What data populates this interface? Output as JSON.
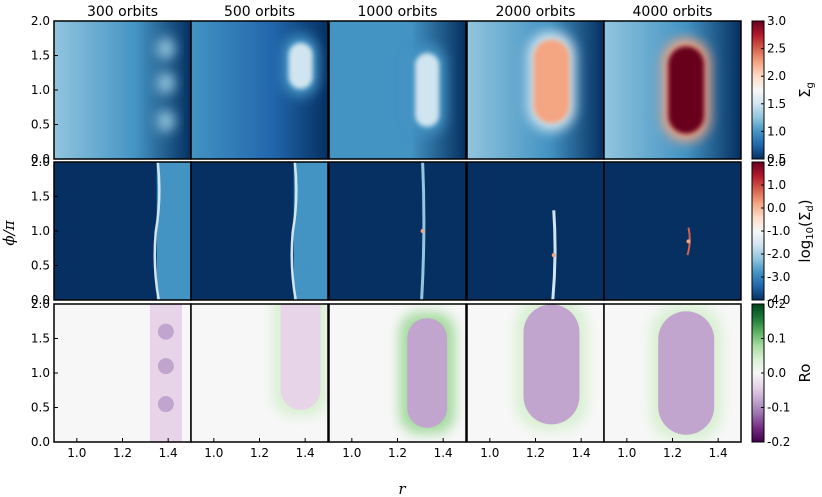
{
  "chart_data": {
    "type": "heatmap",
    "panel_titles": [
      "300 orbits",
      "500 orbits",
      "1000 orbits",
      "2000 orbits",
      "4000 orbits"
    ],
    "xlabel": "r",
    "ylabel": "ϕ/π",
    "x_ticks": [
      "1.0",
      "1.2",
      "1.4"
    ],
    "x_tick_values": [
      1.0,
      1.2,
      1.4
    ],
    "xlim": [
      0.9,
      1.5
    ],
    "ylim": [
      0.0,
      2.0
    ],
    "y_ticks": [
      "0.0",
      "0.5",
      "1.0",
      "1.5",
      "2.0"
    ],
    "y_tick_values": [
      0.0,
      0.5,
      1.0,
      1.5,
      2.0
    ],
    "rows": [
      {
        "quantity": "Σg",
        "colorbar_label_main": "Σ",
        "colorbar_label_sub": "g",
        "colormap": "RdBu_r",
        "clim": [
          0.5,
          3.0
        ],
        "colorbar_ticks": [
          "3.0",
          "2.5",
          "2.0",
          "1.5",
          "1.0",
          "0.5"
        ],
        "colorbar_tick_values": [
          3.0,
          2.5,
          2.0,
          1.5,
          1.0,
          0.5
        ],
        "colors": [
          "#053061",
          "#2166ac",
          "#4393c3",
          "#92c5de",
          "#d1e5f0",
          "#f7f7f7",
          "#fddbc7",
          "#f4a582",
          "#d6604d",
          "#b2182b",
          "#67001f"
        ]
      },
      {
        "quantity": "log10(Σd)",
        "colorbar_label_main": "log",
        "colorbar_label_sub": "10",
        "colorbar_label_tail": "(Σ",
        "colorbar_label_tail_sub": "d",
        "colorbar_label_end": ")",
        "colormap": "RdBu_r",
        "clim": [
          -4.0,
          2.0
        ],
        "colorbar_ticks": [
          "2.0",
          "1.0",
          "0.0",
          "-1.0",
          "-2.0",
          "-3.0",
          "-4.0"
        ],
        "colorbar_tick_values": [
          2.0,
          1.0,
          0.0,
          -1.0,
          -2.0,
          -3.0,
          -4.0
        ],
        "colors": [
          "#053061",
          "#2166ac",
          "#4393c3",
          "#92c5de",
          "#d1e5f0",
          "#f7f7f7",
          "#fddbc7",
          "#f4a582",
          "#d6604d",
          "#b2182b",
          "#67001f"
        ]
      },
      {
        "quantity": "Ro",
        "colorbar_label_main": "Ro",
        "colormap": "PRGn",
        "clim": [
          -0.2,
          0.2
        ],
        "colorbar_ticks": [
          "0.2",
          "0.1",
          "0.0",
          "-0.1",
          "-0.2"
        ],
        "colorbar_tick_values": [
          0.2,
          0.1,
          0.0,
          -0.1,
          -0.2
        ],
        "colors": [
          "#40004b",
          "#762a83",
          "#9970ab",
          "#c2a5cf",
          "#e7d4e8",
          "#f7f7f7",
          "#d9f0d3",
          "#a6dba0",
          "#5aae61",
          "#1b7837",
          "#00441b"
        ]
      }
    ],
    "panels": [
      [
        {
          "vortex": "three small lobes",
          "vortex_r_center": 1.39,
          "vortex_phi_center": [
            0.55,
            1.1,
            1.6
          ],
          "level": 1.2,
          "background_level": 1.0
        },
        {
          "vortex": "elongated",
          "vortex_r_center": 1.38,
          "vortex_phi_range": [
            0.9,
            1.8
          ],
          "level": 1.5,
          "background_level": 0.85
        },
        {
          "vortex": "single oval",
          "vortex_r_center": 1.33,
          "vortex_phi_range": [
            0.35,
            1.65
          ],
          "level": 1.6,
          "background_level": 0.9
        },
        {
          "vortex": "single oval",
          "vortex_r_center": 1.27,
          "vortex_phi_range": [
            0.4,
            1.85
          ],
          "level": 2.2,
          "background_level": 1.0
        },
        {
          "vortex": "single oval",
          "vortex_r_center": 1.26,
          "vortex_phi_range": [
            0.25,
            1.75
          ],
          "level": 2.9,
          "background_level": 1.0
        }
      ],
      [
        {
          "dust_ring_r_inner": 1.35,
          "dust_ring_r_outer": 1.5,
          "dust_level": -2.6,
          "background_level": -4.0
        },
        {
          "dust_ring_r_inner": 1.35,
          "dust_ring_r_outer": 1.5,
          "dust_level": -2.7,
          "background_level": -4.0
        },
        {
          "dust_filament_r": 1.31,
          "dust_level": -2.0,
          "background_level": -4.0
        },
        {
          "dust_filament_r": 1.28,
          "dust_phi_range": [
            0.0,
            1.3
          ],
          "dust_level": -1.5,
          "background_level": -4.0
        },
        {
          "dust_filament_r": 1.27,
          "dust_phi_range": [
            0.65,
            1.05
          ],
          "dust_level": 0.5,
          "background_level": -4.0
        }
      ],
      [
        {
          "vortex_Ro": -0.07,
          "halo_Ro": 0.02
        },
        {
          "vortex_Ro": -0.06,
          "halo_Ro": 0.05
        },
        {
          "vortex_Ro": -0.08,
          "halo_Ro": 0.06
        },
        {
          "vortex_Ro": -0.09,
          "halo_Ro": 0.04
        },
        {
          "vortex_Ro": -0.08,
          "halo_Ro": 0.03
        }
      ]
    ],
    "grid": false,
    "legend": "none"
  }
}
